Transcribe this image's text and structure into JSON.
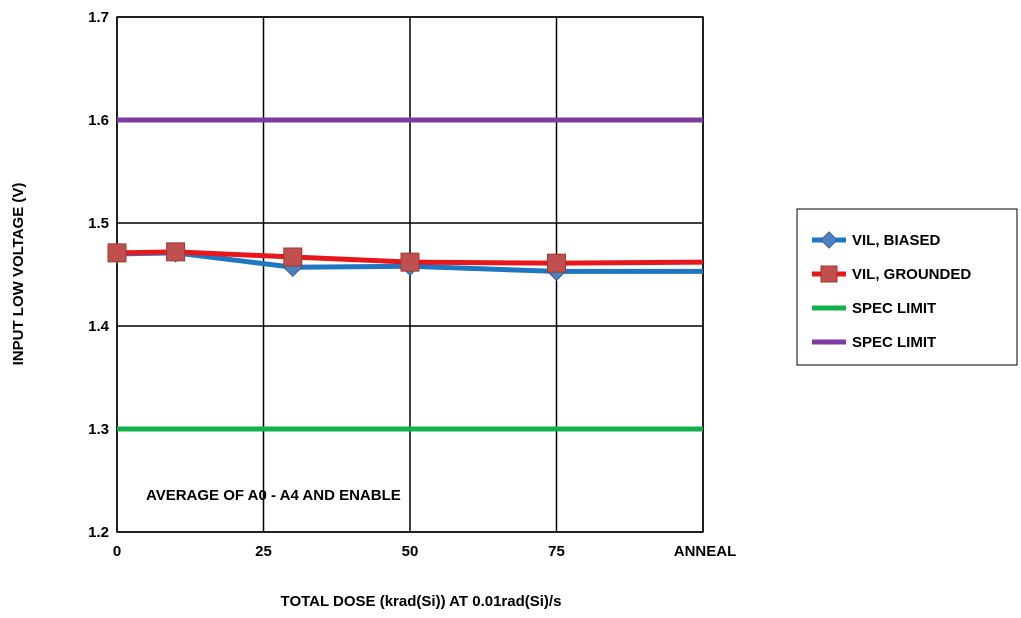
{
  "chart_data": {
    "type": "line",
    "title": "",
    "xlabel": "TOTAL DOSE (krad(Si)) AT 0.01rad(Si)/s",
    "ylabel": "INPUT LOW VOLTAGE (V)",
    "x_tick_labels": [
      "0",
      "25",
      "50",
      "75",
      "ANNEAL"
    ],
    "y_tick_labels": [
      "1.2",
      "1.3",
      "1.4",
      "1.5",
      "1.6",
      "1.7"
    ],
    "x_tick_values": [
      0,
      25,
      50,
      75,
      100
    ],
    "ylim": [
      1.2,
      1.7
    ],
    "xlim": [
      0,
      100
    ],
    "grid": true,
    "legend_position": "right",
    "annotation": "AVERAGE OF A0 - A4 AND ENABLE",
    "series": [
      {
        "name": "VIL, BIASED",
        "color": "#1f77c4",
        "marker": "diamond",
        "x": [
          0,
          10,
          30,
          50,
          75,
          100
        ],
        "y": [
          1.47,
          1.471,
          1.457,
          1.458,
          1.453,
          1.453
        ]
      },
      {
        "name": "VIL, GROUNDED",
        "color": "#e8171c",
        "marker": "square",
        "x": [
          0,
          10,
          30,
          50,
          75,
          100
        ],
        "y": [
          1.471,
          1.472,
          1.467,
          1.462,
          1.461,
          1.462
        ]
      },
      {
        "name": "SPEC LIMIT",
        "color": "#12b04c",
        "marker": "none",
        "x": [
          0,
          100
        ],
        "y": [
          1.3,
          1.3
        ]
      },
      {
        "name": "SPEC LIMIT",
        "color": "#7d3aa1",
        "marker": "none",
        "x": [
          0,
          100
        ],
        "y": [
          1.6,
          1.6
        ]
      }
    ]
  }
}
